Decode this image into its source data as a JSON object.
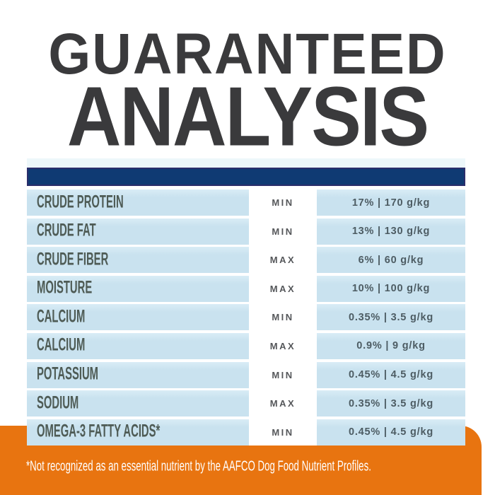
{
  "title": {
    "line1": "GUARANTEED",
    "line2": "ANALYSIS"
  },
  "table": {
    "rows": [
      {
        "nutrient": "CRUDE PROTEIN",
        "basis": "MIN",
        "value": "17% | 170 g/kg"
      },
      {
        "nutrient": "CRUDE FAT",
        "basis": "MIN",
        "value": "13% | 130 g/kg"
      },
      {
        "nutrient": "CRUDE FIBER",
        "basis": "MAX",
        "value": "6% | 60 g/kg"
      },
      {
        "nutrient": "MOISTURE",
        "basis": "MAX",
        "value": "10% | 100 g/kg"
      },
      {
        "nutrient": "CALCIUM",
        "basis": "MIN",
        "value": "0.35% | 3.5 g/kg"
      },
      {
        "nutrient": "CALCIUM",
        "basis": "MAX",
        "value": "0.9% | 9 g/kg"
      },
      {
        "nutrient": "POTASSIUM",
        "basis": "MIN",
        "value": "0.45% | 4.5 g/kg"
      },
      {
        "nutrient": "SODIUM",
        "basis": "MAX",
        "value": "0.35% | 3.5 g/kg"
      },
      {
        "nutrient": "OMEGA-3 FATTY ACIDS*",
        "basis": "MIN",
        "value": "0.45% | 4.5 g/kg"
      }
    ]
  },
  "footer": {
    "note": "*Not recognized as an essential nutrient by the AAFCO Dog Food Nutrient Profiles."
  },
  "colors": {
    "title_charcoal": "#3A3A3C",
    "navy_bar": "#0F3A73",
    "navy_bar_border": "#2B2E6B",
    "row_blue": "#C9E2EF",
    "pale_strip": "#EDF7FA",
    "nutrient_text": "#4E5B55",
    "value_text": "#4D5C63",
    "accent_orange": "#E87410",
    "footer_text": "#FFFFFF"
  }
}
